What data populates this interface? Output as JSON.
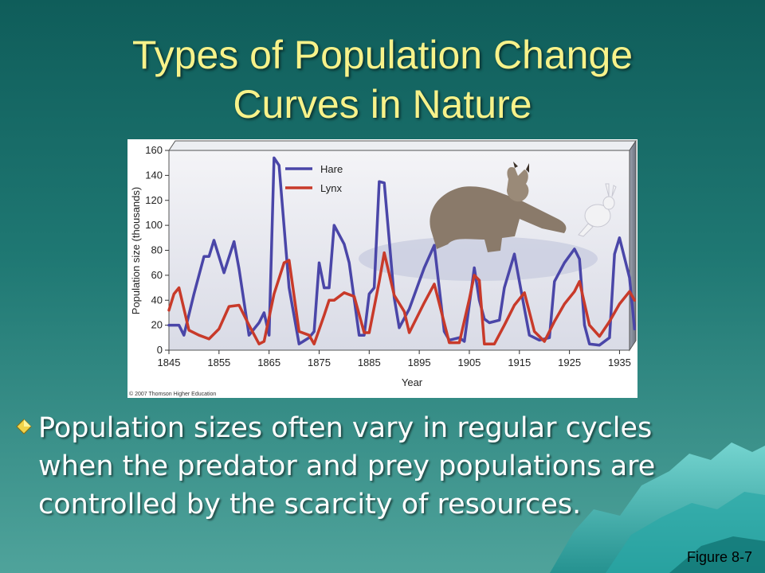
{
  "slide": {
    "title_line1": "Types of Population Change",
    "title_line2": "Curves in Nature",
    "bullet_text": "Population sizes often vary in regular cycles when the predator and prey populations are controlled by the scarcity of resources.",
    "figure_label": "Figure 8-7",
    "colors": {
      "title": "#f7f28a",
      "hare": "#4a46a8",
      "lynx": "#c83a2a"
    }
  },
  "chart_data": {
    "type": "line",
    "xlabel": "Year",
    "ylabel": "Population size (thousands)",
    "xlim": [
      1845,
      1937
    ],
    "ylim": [
      0,
      160
    ],
    "x_ticks": [
      1845,
      1855,
      1865,
      1875,
      1885,
      1895,
      1905,
      1915,
      1925,
      1935
    ],
    "y_ticks": [
      0,
      20,
      40,
      60,
      80,
      100,
      120,
      140,
      160
    ],
    "legend_position": "top-left",
    "copyright": "© 2007 Thomson Higher Education",
    "series": [
      {
        "name": "Hare",
        "color": "#4a46a8",
        "points": [
          [
            1845,
            20
          ],
          [
            1847,
            20
          ],
          [
            1848,
            12
          ],
          [
            1850,
            45
          ],
          [
            1852,
            75
          ],
          [
            1853,
            75
          ],
          [
            1854,
            88
          ],
          [
            1856,
            62
          ],
          [
            1858,
            87
          ],
          [
            1859,
            65
          ],
          [
            1861,
            12
          ],
          [
            1863,
            22
          ],
          [
            1864,
            30
          ],
          [
            1865,
            12
          ],
          [
            1866,
            154
          ],
          [
            1867,
            148
          ],
          [
            1869,
            50
          ],
          [
            1871,
            5
          ],
          [
            1873,
            10
          ],
          [
            1874,
            15
          ],
          [
            1875,
            70
          ],
          [
            1876,
            50
          ],
          [
            1877,
            50
          ],
          [
            1878,
            100
          ],
          [
            1880,
            85
          ],
          [
            1881,
            70
          ],
          [
            1883,
            12
          ],
          [
            1884,
            12
          ],
          [
            1885,
            45
          ],
          [
            1886,
            50
          ],
          [
            1887,
            135
          ],
          [
            1888,
            134
          ],
          [
            1890,
            42
          ],
          [
            1891,
            18
          ],
          [
            1893,
            33
          ],
          [
            1895,
            55
          ],
          [
            1896,
            66
          ],
          [
            1898,
            84
          ],
          [
            1900,
            15
          ],
          [
            1901,
            8
          ],
          [
            1903,
            10
          ],
          [
            1904,
            7
          ],
          [
            1906,
            66
          ],
          [
            1907,
            40
          ],
          [
            1908,
            25
          ],
          [
            1909,
            22
          ],
          [
            1911,
            24
          ],
          [
            1912,
            50
          ],
          [
            1914,
            77
          ],
          [
            1915,
            55
          ],
          [
            1917,
            12
          ],
          [
            1919,
            8
          ],
          [
            1921,
            10
          ],
          [
            1922,
            55
          ],
          [
            1924,
            70
          ],
          [
            1926,
            81
          ],
          [
            1927,
            73
          ],
          [
            1928,
            20
          ],
          [
            1929,
            5
          ],
          [
            1931,
            4
          ],
          [
            1933,
            10
          ],
          [
            1934,
            77
          ],
          [
            1935,
            90
          ],
          [
            1937,
            58
          ],
          [
            1938,
            17
          ]
        ]
      },
      {
        "name": "Lynx",
        "color": "#c83a2a",
        "points": [
          [
            1845,
            32
          ],
          [
            1846,
            45
          ],
          [
            1847,
            50
          ],
          [
            1849,
            16
          ],
          [
            1851,
            12
          ],
          [
            1853,
            9
          ],
          [
            1855,
            17
          ],
          [
            1857,
            35
          ],
          [
            1859,
            36
          ],
          [
            1861,
            20
          ],
          [
            1863,
            5
          ],
          [
            1864,
            7
          ],
          [
            1866,
            45
          ],
          [
            1868,
            70
          ],
          [
            1869,
            72
          ],
          [
            1871,
            15
          ],
          [
            1873,
            12
          ],
          [
            1874,
            5
          ],
          [
            1876,
            28
          ],
          [
            1877,
            40
          ],
          [
            1878,
            40
          ],
          [
            1880,
            46
          ],
          [
            1882,
            43
          ],
          [
            1884,
            14
          ],
          [
            1885,
            14
          ],
          [
            1887,
            55
          ],
          [
            1888,
            78
          ],
          [
            1890,
            44
          ],
          [
            1892,
            31
          ],
          [
            1893,
            14
          ],
          [
            1896,
            38
          ],
          [
            1898,
            53
          ],
          [
            1901,
            6
          ],
          [
            1903,
            6
          ],
          [
            1905,
            41
          ],
          [
            1906,
            60
          ],
          [
            1907,
            56
          ],
          [
            1908,
            5
          ],
          [
            1910,
            5
          ],
          [
            1912,
            20
          ],
          [
            1914,
            36
          ],
          [
            1916,
            46
          ],
          [
            1918,
            15
          ],
          [
            1920,
            7
          ],
          [
            1922,
            23
          ],
          [
            1924,
            37
          ],
          [
            1926,
            47
          ],
          [
            1927,
            55
          ],
          [
            1929,
            20
          ],
          [
            1931,
            11
          ],
          [
            1933,
            23
          ],
          [
            1935,
            37
          ],
          [
            1937,
            47
          ],
          [
            1938,
            40
          ]
        ]
      }
    ]
  }
}
